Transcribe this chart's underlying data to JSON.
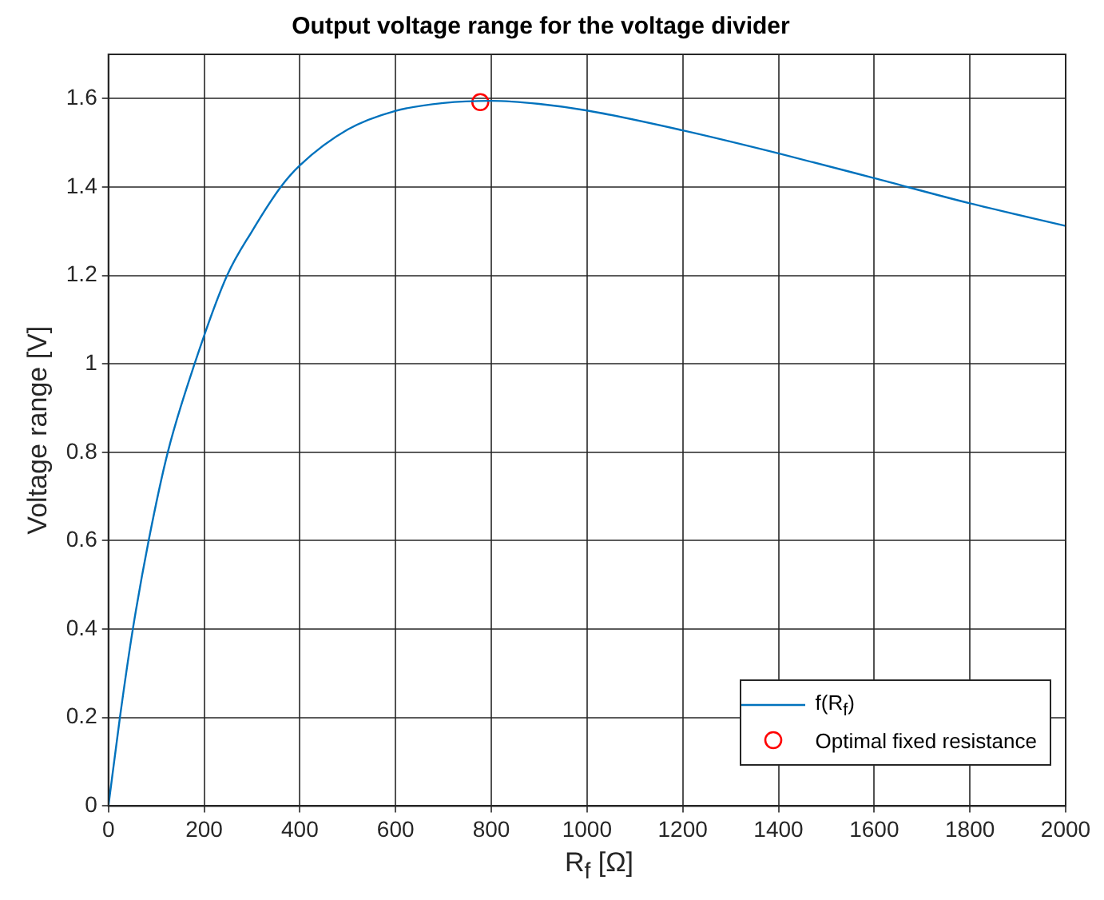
{
  "chart_data": {
    "type": "line",
    "title": "Output voltage range for the voltage divider",
    "xlabel": "R$_{f}$ [Ω]",
    "ylabel": "Voltage range [V]",
    "series": [
      {
        "name": "f(R$_{f}$)",
        "color": "#0072bd",
        "marker": "none",
        "x": [
          0,
          24,
          51,
          84,
          124,
          180,
          248,
          300,
          360,
          400,
          500,
          599,
          700,
          800,
          900,
          1000,
          1200,
          1400,
          1600,
          1800,
          2000
        ],
        "values": [
          0,
          0.2,
          0.4,
          0.6,
          0.8,
          1.0,
          1.2,
          1.3,
          1.4,
          1.449,
          1.53,
          1.572,
          1.59,
          1.595,
          1.588,
          1.573,
          1.528,
          1.476,
          1.42,
          1.363,
          1.312
        ]
      },
      {
        "name": "Optimal fixed resistance",
        "type": "scatter",
        "color": "#ff0000",
        "marker": "circle",
        "x": [
          777
        ],
        "values": [
          1.592
        ]
      }
    ],
    "xlim": [
      0,
      2000
    ],
    "xticks": [
      0,
      200,
      400,
      600,
      800,
      1000,
      1200,
      1400,
      1600,
      1800,
      2000
    ],
    "ylim": [
      0,
      1.7
    ],
    "yticks": [
      0,
      0.2,
      0.4,
      0.6,
      0.8,
      1,
      1.2,
      1.4,
      1.6
    ],
    "grid": true,
    "legend": "bottom right"
  }
}
